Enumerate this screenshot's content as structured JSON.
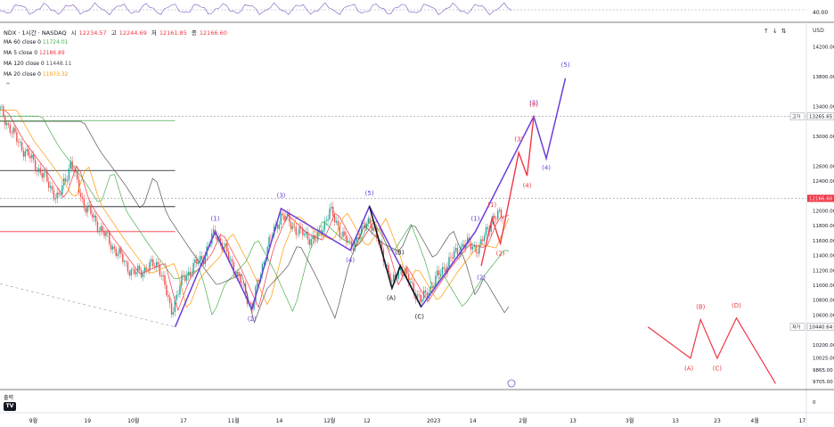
{
  "header": {
    "symbol": "NDX · 1시간 · NASDAQ",
    "open_label": "시",
    "open": "12234.57",
    "high_label": "고",
    "high": "12244.69",
    "low_label": "저",
    "low": "12161.85",
    "close_label": "종",
    "close": "12166.60"
  },
  "ma": [
    {
      "label": "MA 60 close 0",
      "value": "11724.01",
      "color": "#4caf50"
    },
    {
      "label": "MA 5 close 0",
      "value": "12186.89",
      "color": "#f23645"
    },
    {
      "label": "MA 120 close 0",
      "value": "11448.11",
      "color": "#555555"
    },
    {
      "label": "MA 20 close 0",
      "value": "11973.32",
      "color": "#ff9800"
    }
  ],
  "oscillator_level": "40.00",
  "currency": "USD",
  "volume_label": "출력",
  "tv_logo": "TV",
  "chart_data": {
    "type": "line",
    "y_axis": {
      "min": 9600,
      "max": 14350,
      "ticks": [
        "14200.00",
        "13800.00",
        "13400.00",
        "13000.00",
        "12600.00",
        "12400.00",
        "12000.00",
        "11800.00",
        "11600.00",
        "11400.00",
        "11200.00",
        "11000.00",
        "10800.00",
        "10600.00",
        "10200.00",
        "10025.00",
        "9865.00",
        "9705.00"
      ]
    },
    "bottom_axis_tick": "0",
    "x_axis": [
      {
        "label": "9월",
        "pos": 0.04
      },
      {
        "label": "19",
        "pos": 0.105
      },
      {
        "label": "10월",
        "pos": 0.16
      },
      {
        "label": "17",
        "pos": 0.22
      },
      {
        "label": "11월",
        "pos": 0.28
      },
      {
        "label": "14",
        "pos": 0.335
      },
      {
        "label": "12월",
        "pos": 0.395
      },
      {
        "label": "12",
        "pos": 0.44
      },
      {
        "label": "2023",
        "pos": 0.52
      },
      {
        "label": "14",
        "pos": 0.567
      },
      {
        "label": "2월",
        "pos": 0.627
      },
      {
        "label": "13",
        "pos": 0.687
      },
      {
        "label": "3월",
        "pos": 0.755
      },
      {
        "label": "13",
        "pos": 0.81
      },
      {
        "label": "23",
        "pos": 0.86
      },
      {
        "label": "4월",
        "pos": 0.905
      },
      {
        "label": "17",
        "pos": 0.962
      }
    ],
    "price_labels": [
      {
        "label": "고가",
        "value": "13265.65",
        "price": 13265.65,
        "color": "#131722"
      },
      {
        "label": "",
        "value": "12166.60",
        "price": 12166.6,
        "color": "#f23645"
      },
      {
        "label": "저가",
        "value": "10440.64",
        "price": 10440.64,
        "color": "#131722"
      }
    ],
    "horizontal_lines": [
      {
        "price": 13265,
        "color": "#9598a1",
        "dash": true,
        "x0": 0,
        "x1": 1
      },
      {
        "price": 12166,
        "color": "#9598a1",
        "dash": true,
        "x0": 0,
        "x1": 1
      },
      {
        "price": 12540,
        "color": "#131722",
        "dash": false,
        "x0": 0,
        "x1": 0.21
      },
      {
        "price": 12055,
        "color": "#131722",
        "dash": false,
        "x0": 0,
        "x1": 0.21
      },
      {
        "price": 11720,
        "color": "#f23645",
        "dash": false,
        "x0": 0,
        "x1": 0.21
      },
      {
        "price": 13210,
        "color": "#4caf50",
        "dash": false,
        "x0": 0,
        "x1": 0.21
      }
    ],
    "wave_purple": [
      [
        0.21,
        10440
      ],
      [
        0.258,
        11720
      ],
      [
        0.302,
        10680
      ],
      [
        0.337,
        12030
      ],
      [
        0.42,
        11470
      ],
      [
        0.443,
        12060
      ],
      [
        0.505,
        10710
      ],
      [
        0.57,
        11720
      ],
      [
        0.64,
        13265
      ],
      [
        0.655,
        12700
      ],
      [
        0.678,
        13780
      ]
    ],
    "wave_black": [
      [
        0.443,
        12060
      ],
      [
        0.47,
        10960
      ],
      [
        0.48,
        11260
      ],
      [
        0.505,
        10710
      ]
    ],
    "wave_red": [
      [
        0.577,
        11260
      ],
      [
        0.59,
        11900
      ],
      [
        0.6,
        11560
      ],
      [
        0.622,
        12780
      ],
      [
        0.632,
        12470
      ],
      [
        0.64,
        13265
      ]
    ],
    "wave_red_future": [
      [
        0.777,
        10440
      ],
      [
        0.828,
        10020
      ],
      [
        0.84,
        10540
      ],
      [
        0.86,
        10020
      ],
      [
        0.883,
        10560
      ],
      [
        0.93,
        9680
      ]
    ],
    "labels_purple": [
      {
        "t": "(1)",
        "x": 0.258,
        "p": 11870
      },
      {
        "t": "(2)",
        "x": 0.302,
        "p": 10520
      },
      {
        "t": "(3)",
        "x": 0.337,
        "p": 12180
      },
      {
        "t": "(4)",
        "x": 0.42,
        "p": 11310
      },
      {
        "t": "(5)",
        "x": 0.443,
        "p": 12210
      },
      {
        "t": "(1)",
        "x": 0.57,
        "p": 11870
      },
      {
        "t": "(2)",
        "x": 0.577,
        "p": 11080
      },
      {
        "t": "(3)",
        "x": 0.64,
        "p": 13420
      },
      {
        "t": "(4)",
        "x": 0.655,
        "p": 12550
      },
      {
        "t": "(5)",
        "x": 0.678,
        "p": 13930
      }
    ],
    "labels_black": [
      {
        "t": "(A)",
        "x": 0.469,
        "p": 10800
      },
      {
        "t": "(B)",
        "x": 0.479,
        "p": 11410
      },
      {
        "t": "(C)",
        "x": 0.503,
        "p": 10550
      }
    ],
    "labels_red": [
      {
        "t": "(1)",
        "x": 0.59,
        "p": 12050
      },
      {
        "t": "(2)",
        "x": 0.6,
        "p": 11400
      },
      {
        "t": "(3)",
        "x": 0.622,
        "p": 12930
      },
      {
        "t": "(4)",
        "x": 0.632,
        "p": 12310
      },
      {
        "t": "(5)",
        "x": 0.64,
        "p": 13400
      },
      {
        "t": "(A)",
        "x": 0.826,
        "p": 9860
      },
      {
        "t": "(B)",
        "x": 0.84,
        "p": 10680
      },
      {
        "t": "(C)",
        "x": 0.86,
        "p": 9860
      },
      {
        "t": "(D)",
        "x": 0.883,
        "p": 10700
      }
    ]
  }
}
